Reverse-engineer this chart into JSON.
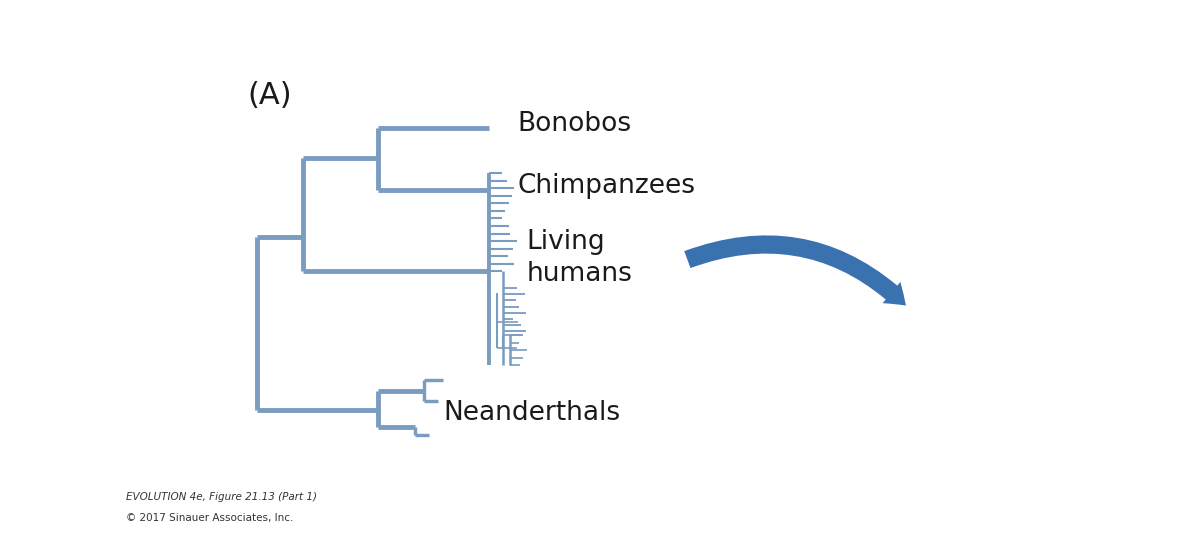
{
  "background_color": "#ffffff",
  "tree_color": "#7a9cbf",
  "tree_linewidth": 3.5,
  "label_color": "#1a1a1a",
  "label_fontsize": 19,
  "panel_label": "(A)",
  "panel_label_fontsize": 22,
  "taxa": [
    "Bonobos",
    "Chimpanzees",
    "Living\nhumans",
    "Neanderthals"
  ],
  "caption_line1": "EVOLUTION 4e, Figure 21.13 (Part 1)",
  "caption_line2": "© 2017 Sinauer Associates, Inc.",
  "caption_fontsize": 7.5,
  "arrow_color": "#3a72b0"
}
